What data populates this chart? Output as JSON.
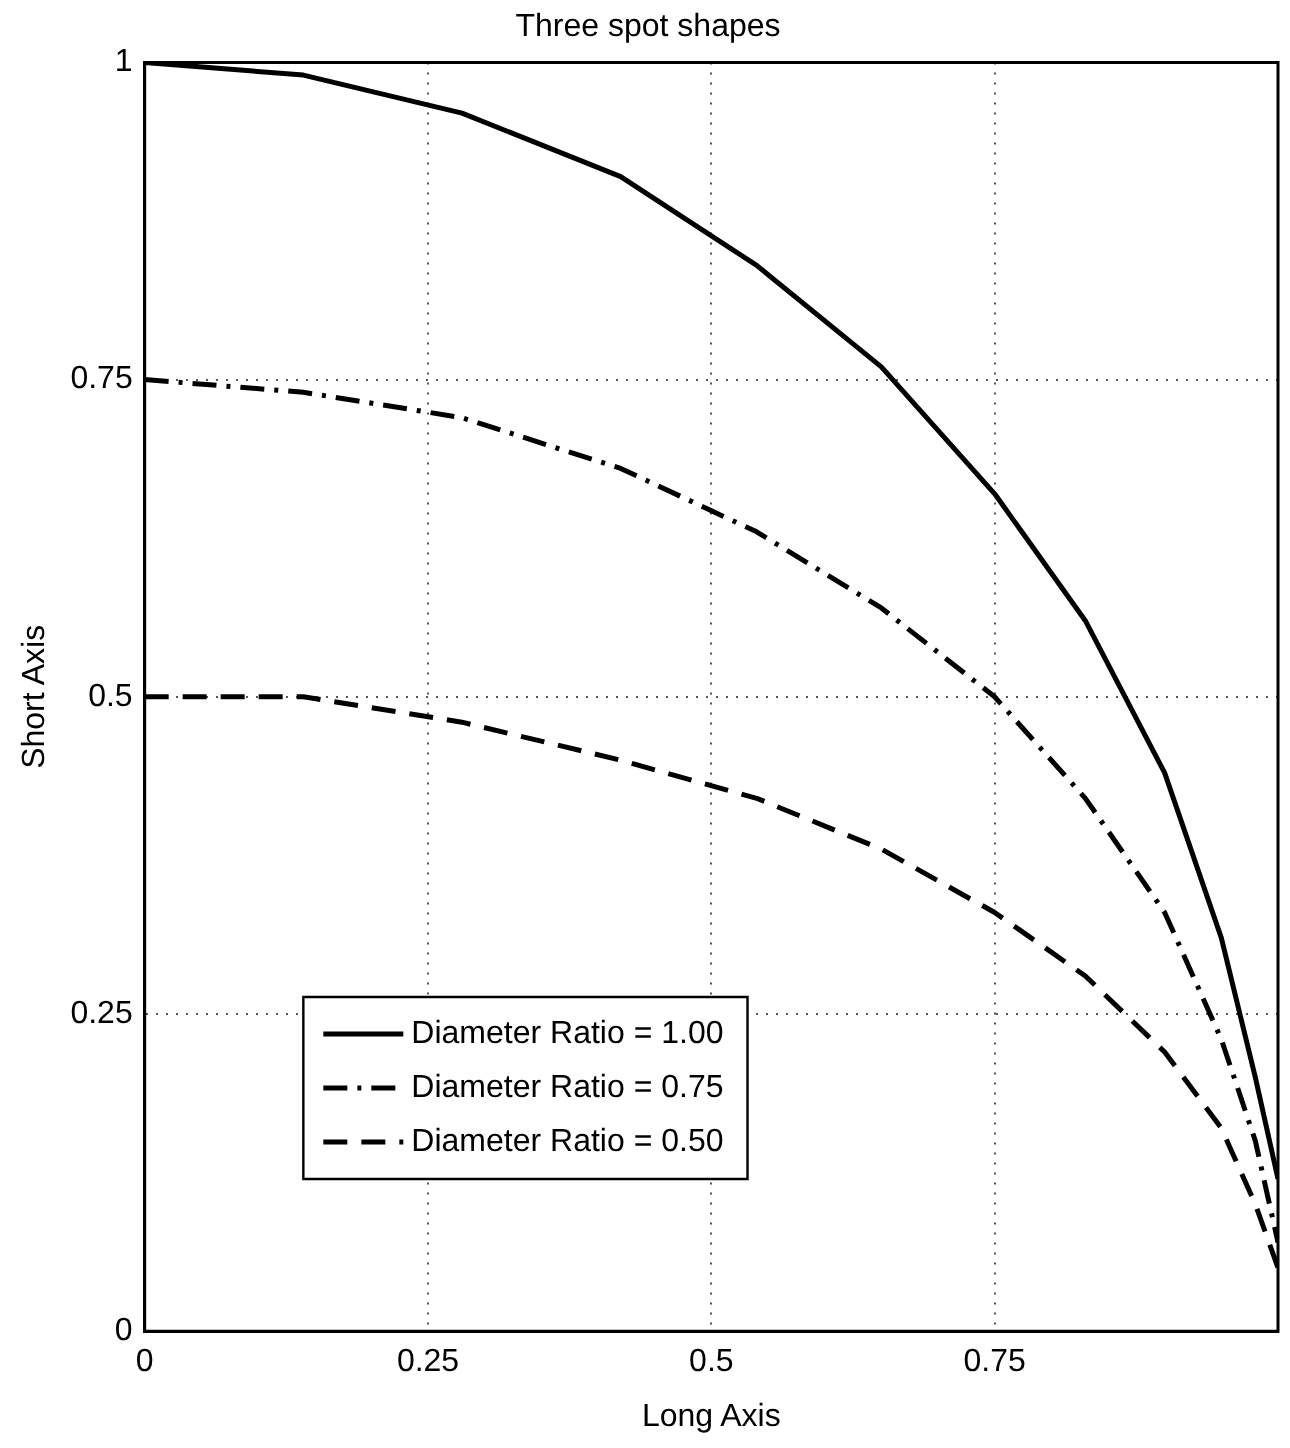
{
  "chart_data": {
    "type": "line",
    "title": "Three spot shapes",
    "xlabel": "Long Axis",
    "ylabel": "Short Axis",
    "x": [
      0,
      0.14,
      0.28,
      0.42,
      0.54,
      0.65,
      0.75,
      0.83,
      0.9,
      0.95,
      0.98,
      1
    ],
    "series": [
      {
        "name": "Diameter Ratio = 1.00",
        "color": "#000000",
        "line_style": "solid",
        "values": [
          1,
          0.99,
          0.96,
          0.91,
          0.84,
          0.76,
          0.66,
          0.56,
          0.44,
          0.31,
          0.2,
          0.12
        ]
      },
      {
        "name": "Diameter Ratio = 0.75",
        "color": "#000000",
        "line_style": "dashdot",
        "values": [
          0.75,
          0.74,
          0.72,
          0.68,
          0.63,
          0.57,
          0.5,
          0.42,
          0.33,
          0.23,
          0.15,
          0.07
        ]
      },
      {
        "name": "Diameter Ratio = 0.50",
        "color": "#000000",
        "line_style": "dashed",
        "values": [
          0.5,
          0.5,
          0.48,
          0.45,
          0.42,
          0.38,
          0.33,
          0.28,
          0.22,
          0.16,
          0.1,
          0.05
        ]
      }
    ],
    "xlim": [
      0,
      1
    ],
    "xticks": [
      0,
      0.25,
      0.5,
      0.75,
      {
        "value": 1,
        "label": null
      }
    ],
    "ylim": [
      0,
      1
    ],
    "yticks": [
      0,
      0.25,
      0.5,
      0.75,
      1
    ],
    "grid": true,
    "legend": "bottom left",
    "marker": "none"
  }
}
